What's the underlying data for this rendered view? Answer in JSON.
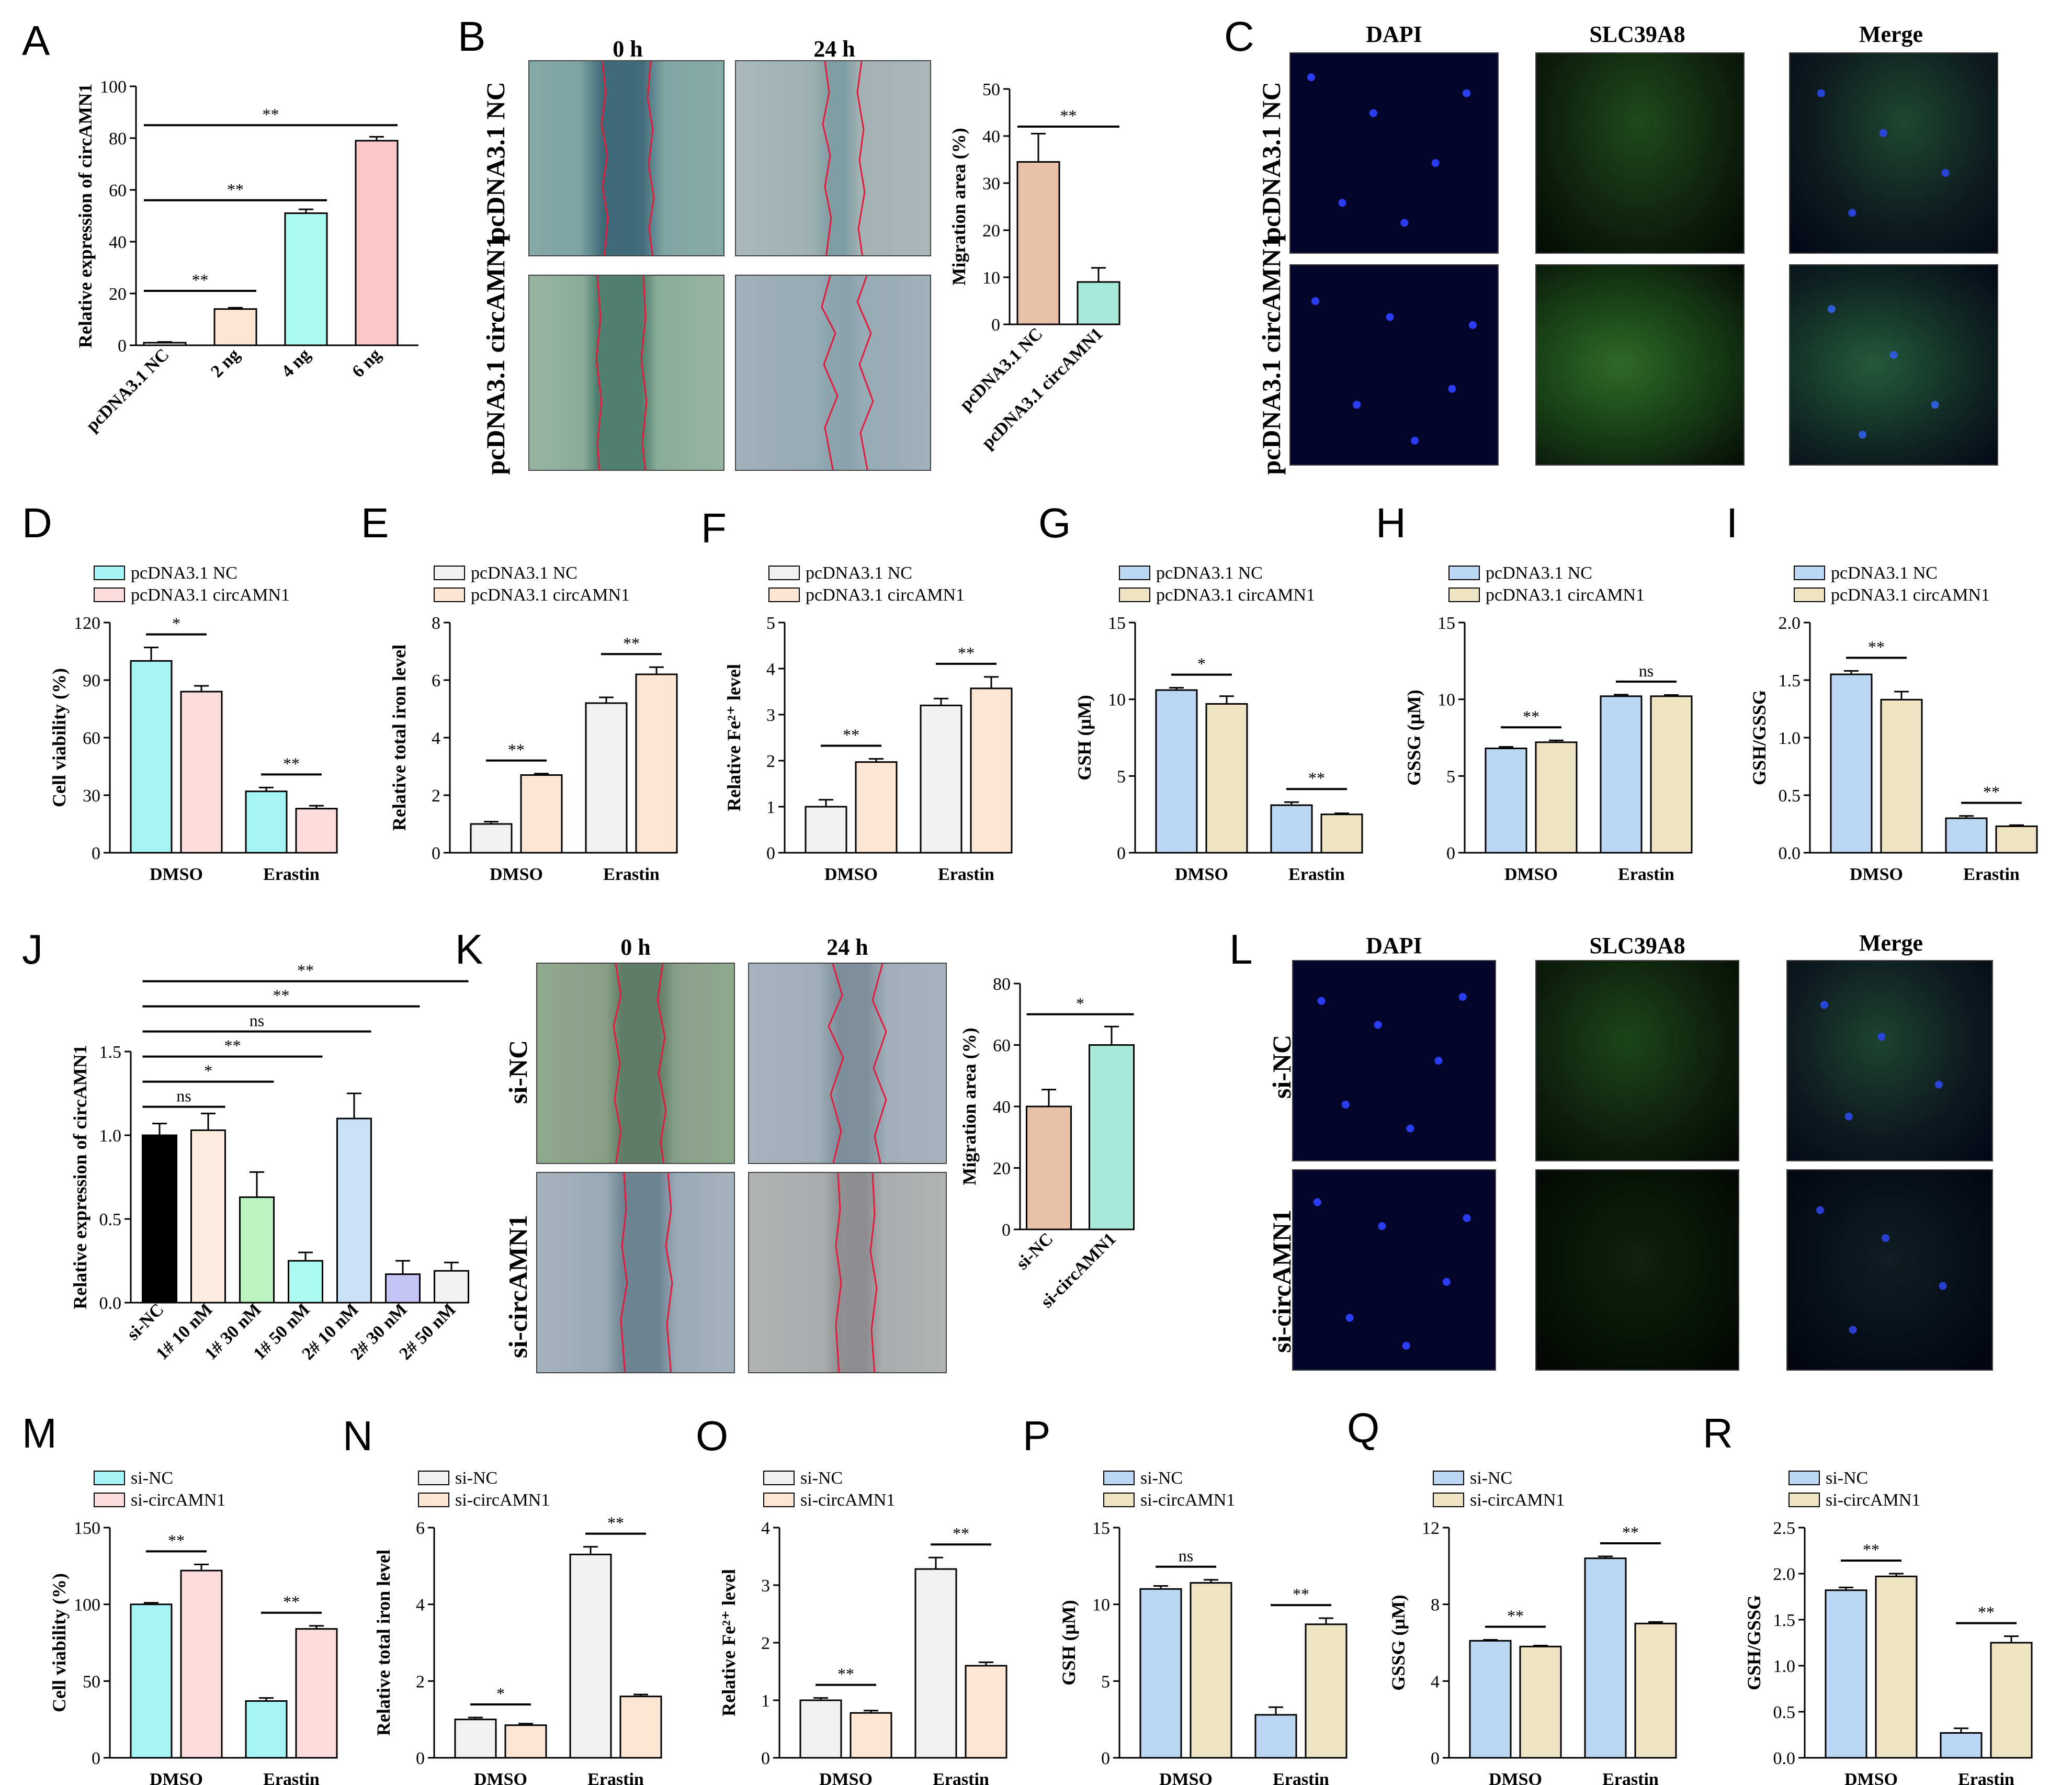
{
  "colors": {
    "cyan": "#a6f5f6",
    "pink": "#fcdcdc",
    "white": "#f1f1f1",
    "peach": "#fde7d4",
    "blue": "#bcd7f3",
    "beige": "#eee3c2",
    "black": "#000000",
    "peachJ": "#fdecdf",
    "greenJ": "#b8f3c0",
    "lblueJ": "#c9e1f7",
    "purpleJ": "#c3c3f4",
    "tanB": "#e7c1a7",
    "mintB": "#a9e9da",
    "peachA": "#fde7d4",
    "cyanA": "#aafbf1",
    "pinkA": "#fcc7c7"
  },
  "legends": {
    "nc": "pcDNA3.1 NC",
    "circ": "pcDNA3.1 circAMN1",
    "sinc": "si-NC",
    "sicirc": "si-circAMN1"
  },
  "images": {
    "time0": "0 h",
    "time24": "24 h",
    "dapi": "DAPI",
    "slc": "SLC39A8",
    "merge": "Merge",
    "row_nc": "pcDNA3.1 NC",
    "row_circ": "pcDNA3.1 circAMN1",
    "row_sinc": "si-NC",
    "row_sicirc": "si-circAMN1"
  },
  "chart_data": [
    {
      "id": "A",
      "type": "bar",
      "ylabel": "Relative expression of circAMN1",
      "categories": [
        "pcDNA3.1 NC",
        "2 ng",
        "4 ng",
        "6 ng"
      ],
      "values": [
        1,
        14,
        51,
        79
      ],
      "errors": [
        0.3,
        0.5,
        1.5,
        1.5
      ],
      "ylim": [
        0,
        100
      ],
      "yticks": [
        0,
        20,
        40,
        60,
        80,
        100
      ],
      "colors": [
        "white",
        "peachA",
        "cyanA",
        "pinkA"
      ],
      "brackets": [
        {
          "from": 0,
          "to": 1,
          "y": 21,
          "label": "**"
        },
        {
          "from": 0,
          "to": 2,
          "y": 56,
          "label": "**"
        },
        {
          "from": 0,
          "to": 3,
          "y": 85,
          "label": "**"
        }
      ]
    },
    {
      "id": "B",
      "type": "bar",
      "ylabel": "Migration area (%)",
      "categories": [
        "pcDNA3.1 NC",
        "pcDNA3.1 circAMN1"
      ],
      "values": [
        34.5,
        9
      ],
      "errors": [
        6,
        3
      ],
      "ylim": [
        0,
        50
      ],
      "yticks": [
        0,
        10,
        20,
        30,
        40,
        50
      ],
      "colors": [
        "tanB",
        "mintB"
      ],
      "brackets": [
        {
          "from": 0,
          "to": 1,
          "y": 42,
          "label": "**"
        }
      ]
    },
    {
      "id": "D",
      "type": "grouped-bar",
      "ylabel": "Cell viability (%)",
      "groups": [
        "DMSO",
        "Erastin"
      ],
      "series": [
        {
          "name": "pcDNA3.1 NC",
          "values": [
            100,
            32
          ],
          "errors": [
            7,
            2
          ],
          "color": "cyan"
        },
        {
          "name": "pcDNA3.1 circAMN1",
          "values": [
            84,
            23
          ],
          "errors": [
            3,
            1.5
          ],
          "color": "pink"
        }
      ],
      "ylim": [
        0,
        120
      ],
      "yticks": [
        0,
        30,
        60,
        90,
        120
      ],
      "sig": [
        "*",
        "**"
      ],
      "legend": [
        "nc",
        "circ"
      ]
    },
    {
      "id": "E",
      "type": "grouped-bar",
      "ylabel": "Relative total iron level",
      "groups": [
        "DMSO",
        "Erastin"
      ],
      "series": [
        {
          "name": "pcDNA3.1 NC",
          "values": [
            1,
            5.2
          ],
          "errors": [
            0.08,
            0.2
          ],
          "color": "white"
        },
        {
          "name": "pcDNA3.1 circAMN1",
          "values": [
            2.7,
            6.2
          ],
          "errors": [
            0.05,
            0.25
          ],
          "color": "peach"
        }
      ],
      "ylim": [
        0,
        8
      ],
      "yticks": [
        0,
        2,
        4,
        6,
        8
      ],
      "sig": [
        "**",
        "**"
      ],
      "legend": [
        "nc",
        "circ"
      ]
    },
    {
      "id": "F",
      "type": "grouped-bar",
      "ylabel": "Relative Fe²⁺ level",
      "groups": [
        "DMSO",
        "Erastin"
      ],
      "series": [
        {
          "name": "pcDNA3.1 NC",
          "values": [
            1,
            3.2
          ],
          "errors": [
            0.15,
            0.15
          ],
          "color": "white"
        },
        {
          "name": "pcDNA3.1 circAMN1",
          "values": [
            1.97,
            3.57
          ],
          "errors": [
            0.07,
            0.25
          ],
          "color": "peach"
        }
      ],
      "ylim": [
        0,
        5
      ],
      "yticks": [
        0,
        1,
        2,
        3,
        4,
        5
      ],
      "sig": [
        "**",
        "**"
      ],
      "legend": [
        "nc",
        "circ"
      ]
    },
    {
      "id": "G",
      "type": "grouped-bar",
      "ylabel": "GSH (μM)",
      "groups": [
        "DMSO",
        "Erastin"
      ],
      "series": [
        {
          "name": "pcDNA3.1 NC",
          "values": [
            10.6,
            3.1
          ],
          "errors": [
            0.15,
            0.2
          ],
          "color": "blue"
        },
        {
          "name": "pcDNA3.1 circAMN1",
          "values": [
            9.7,
            2.5
          ],
          "errors": [
            0.5,
            0.07
          ],
          "color": "beige"
        }
      ],
      "ylim": [
        0,
        15
      ],
      "yticks": [
        0,
        5,
        10,
        15
      ],
      "sig": [
        "*",
        "**"
      ],
      "legend": [
        "nc",
        "circ"
      ]
    },
    {
      "id": "H",
      "type": "grouped-bar",
      "ylabel": "GSSG (μM)",
      "groups": [
        "DMSO",
        "Erastin"
      ],
      "series": [
        {
          "name": "pcDNA3.1 NC",
          "values": [
            6.8,
            10.2
          ],
          "errors": [
            0.1,
            0.1
          ],
          "color": "blue"
        },
        {
          "name": "pcDNA3.1 circAMN1",
          "values": [
            7.2,
            10.2
          ],
          "errors": [
            0.12,
            0.08
          ],
          "color": "beige"
        }
      ],
      "ylim": [
        0,
        15
      ],
      "yticks": [
        0,
        5,
        10,
        15
      ],
      "sig": [
        "**",
        "ns"
      ],
      "legend": [
        "nc",
        "circ"
      ]
    },
    {
      "id": "I",
      "type": "grouped-bar",
      "ylabel": "GSH/GSSG",
      "groups": [
        "DMSO",
        "Erastin"
      ],
      "series": [
        {
          "name": "pcDNA3.1 NC",
          "values": [
            1.55,
            0.3
          ],
          "errors": [
            0.03,
            0.02
          ],
          "color": "blue"
        },
        {
          "name": "pcDNA3.1 circAMN1",
          "values": [
            1.33,
            0.23
          ],
          "errors": [
            0.07,
            0.01
          ],
          "color": "beige"
        }
      ],
      "ylim": [
        0,
        2
      ],
      "yticks": [
        0.0,
        0.5,
        1.0,
        1.5,
        2.0
      ],
      "sig": [
        "**",
        "**"
      ],
      "legend": [
        "nc",
        "circ"
      ]
    },
    {
      "id": "J",
      "type": "bar",
      "ylabel": "Relative expression of circAMN1",
      "categories": [
        "si-NC",
        "1# 10 nM",
        "1# 30 nM",
        "1# 50 nM",
        "2# 10 nM",
        "2# 30 nM",
        "2# 50 nM"
      ],
      "values": [
        1.0,
        1.03,
        0.63,
        0.25,
        1.1,
        0.17,
        0.19
      ],
      "errors": [
        0.07,
        0.1,
        0.15,
        0.05,
        0.15,
        0.08,
        0.05
      ],
      "ylim": [
        0,
        1.5
      ],
      "yticks": [
        0.0,
        0.5,
        1.0,
        1.5
      ],
      "colors": [
        "black",
        "peachJ",
        "greenJ",
        "cyanA",
        "lblueJ",
        "purpleJ",
        "white"
      ],
      "brackets": [
        {
          "from": 0,
          "to": 1,
          "y": 1.17,
          "label": "ns"
        },
        {
          "from": 0,
          "to": 2,
          "y": 1.32,
          "label": "*"
        },
        {
          "from": 0,
          "to": 3,
          "y": 1.47,
          "label": "**"
        },
        {
          "from": 0,
          "to": 4,
          "y": 1.62,
          "label": "ns"
        },
        {
          "from": 0,
          "to": 5,
          "y": 1.77,
          "label": "**"
        },
        {
          "from": 0,
          "to": 6,
          "y": 1.92,
          "label": "**"
        }
      ]
    },
    {
      "id": "K",
      "type": "bar",
      "ylabel": "Migration area (%)",
      "categories": [
        "si-NC",
        "si-circAMN1"
      ],
      "values": [
        40,
        60
      ],
      "errors": [
        5.5,
        6
      ],
      "ylim": [
        0,
        80
      ],
      "yticks": [
        0,
        20,
        40,
        60,
        80
      ],
      "colors": [
        "tanB",
        "mintB"
      ],
      "brackets": [
        {
          "from": 0,
          "to": 1,
          "y": 70,
          "label": "*"
        }
      ]
    },
    {
      "id": "M",
      "type": "grouped-bar",
      "ylabel": "Cell viability (%)",
      "groups": [
        "DMSO",
        "Erastin"
      ],
      "series": [
        {
          "name": "si-NC",
          "values": [
            100,
            37
          ],
          "errors": [
            1,
            2
          ],
          "color": "cyan"
        },
        {
          "name": "si-circAMN1",
          "values": [
            122,
            84
          ],
          "errors": [
            4,
            2
          ],
          "color": "pink"
        }
      ],
      "ylim": [
        0,
        150
      ],
      "yticks": [
        0,
        50,
        100,
        150
      ],
      "sig": [
        "**",
        "**"
      ],
      "legend": [
        "sinc",
        "sicirc"
      ]
    },
    {
      "id": "N",
      "type": "grouped-bar",
      "ylabel": "Relative total iron level",
      "groups": [
        "DMSO",
        "Erastin"
      ],
      "series": [
        {
          "name": "si-NC",
          "values": [
            1,
            5.3
          ],
          "errors": [
            0.05,
            0.2
          ],
          "color": "white"
        },
        {
          "name": "si-circAMN1",
          "values": [
            0.85,
            1.6
          ],
          "errors": [
            0.04,
            0.05
          ],
          "color": "peach"
        }
      ],
      "ylim": [
        0,
        6
      ],
      "yticks": [
        0,
        2,
        4,
        6
      ],
      "sig": [
        "*",
        "**"
      ],
      "legend": [
        "sinc",
        "sicirc"
      ]
    },
    {
      "id": "O",
      "type": "grouped-bar",
      "ylabel": "Relative Fe²⁺ level",
      "groups": [
        "DMSO",
        "Erastin"
      ],
      "series": [
        {
          "name": "si-NC",
          "values": [
            1.0,
            3.28
          ],
          "errors": [
            0.04,
            0.2
          ],
          "color": "white"
        },
        {
          "name": "si-circAMN1",
          "values": [
            0.78,
            1.6
          ],
          "errors": [
            0.04,
            0.06
          ],
          "color": "peach"
        }
      ],
      "ylim": [
        0,
        4
      ],
      "yticks": [
        0,
        1,
        2,
        3,
        4
      ],
      "sig": [
        "**",
        "**"
      ],
      "legend": [
        "sinc",
        "sicirc"
      ]
    },
    {
      "id": "P",
      "type": "grouped-bar",
      "ylabel": "GSH (μM)",
      "groups": [
        "DMSO",
        "Erastin"
      ],
      "series": [
        {
          "name": "si-NC",
          "values": [
            11,
            2.8
          ],
          "errors": [
            0.2,
            0.5
          ],
          "color": "blue"
        },
        {
          "name": "si-circAMN1",
          "values": [
            11.4,
            8.7
          ],
          "errors": [
            0.2,
            0.4
          ],
          "color": "beige"
        }
      ],
      "ylim": [
        0,
        15
      ],
      "yticks": [
        0,
        5,
        10,
        15
      ],
      "sig": [
        "ns",
        "**"
      ],
      "legend": [
        "sinc",
        "sicirc"
      ]
    },
    {
      "id": "Q",
      "type": "grouped-bar",
      "ylabel": "GSSG (μM)",
      "groups": [
        "DMSO",
        "Erastin"
      ],
      "series": [
        {
          "name": "si-NC",
          "values": [
            6.1,
            10.4
          ],
          "errors": [
            0.05,
            0.1
          ],
          "color": "blue"
        },
        {
          "name": "si-circAMN1",
          "values": [
            5.8,
            7.0
          ],
          "errors": [
            0.05,
            0.08
          ],
          "color": "beige"
        }
      ],
      "ylim": [
        0,
        12
      ],
      "yticks": [
        0,
        4,
        8,
        12
      ],
      "sig": [
        "**",
        "**"
      ],
      "legend": [
        "sinc",
        "sicirc"
      ]
    },
    {
      "id": "R",
      "type": "grouped-bar",
      "ylabel": "GSH/GSSG",
      "groups": [
        "DMSO",
        "Erastin"
      ],
      "series": [
        {
          "name": "si-NC",
          "values": [
            1.82,
            0.27
          ],
          "errors": [
            0.03,
            0.05
          ],
          "color": "blue"
        },
        {
          "name": "si-circAMN1",
          "values": [
            1.97,
            1.25
          ],
          "errors": [
            0.03,
            0.07
          ],
          "color": "beige"
        }
      ],
      "ylim": [
        0,
        2.5
      ],
      "yticks": [
        0.0,
        0.5,
        1.0,
        1.5,
        2.0,
        2.5
      ],
      "sig": [
        "**",
        "**"
      ],
      "legend": [
        "sinc",
        "sicirc"
      ]
    }
  ]
}
